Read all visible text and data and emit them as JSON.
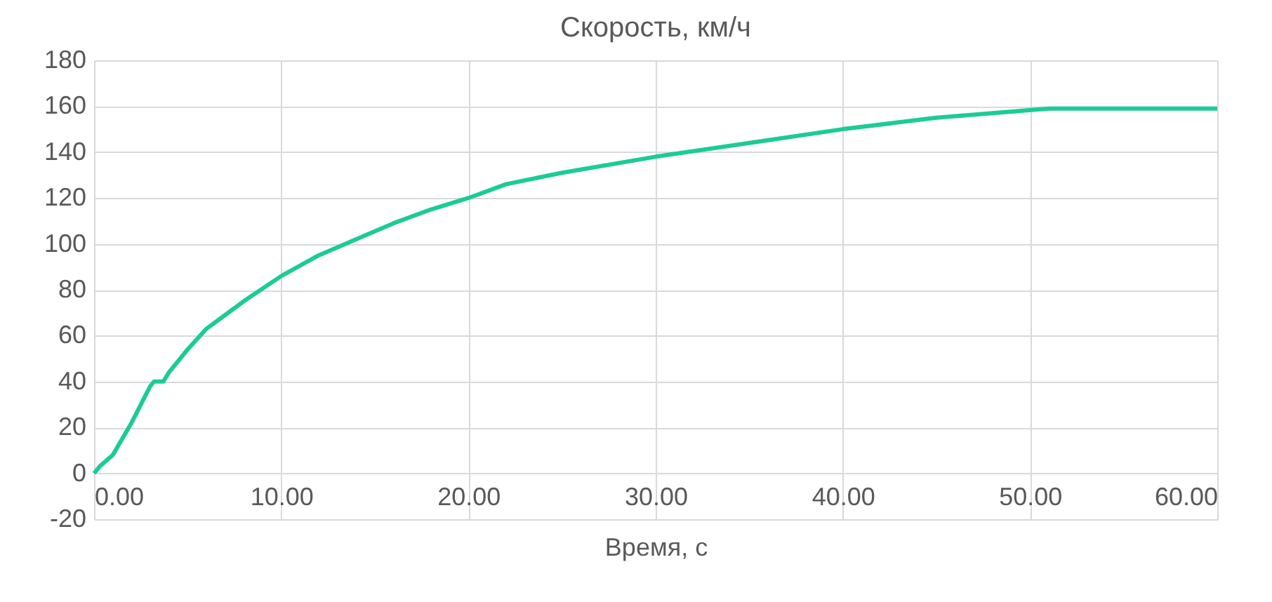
{
  "chart_data": {
    "type": "line",
    "title": "Скорость, км/ч",
    "xlabel": "Время, с",
    "x": [
      0,
      0.3,
      1,
      2,
      3,
      3.2,
      3.7,
      4,
      5,
      6,
      7,
      8,
      10,
      12,
      14,
      16,
      18,
      20,
      22,
      25,
      30,
      35,
      40,
      45,
      51,
      60
    ],
    "series": [
      {
        "color": "#1ccb96",
        "values": [
          0,
          3,
          8,
          22,
          38,
          40,
          40,
          44,
          54,
          63,
          69,
          75,
          86,
          95,
          102,
          109,
          115,
          120,
          126,
          131,
          138,
          144,
          150,
          155,
          159,
          159
        ]
      }
    ],
    "xlim": [
      0,
      60
    ],
    "xticks": [
      {
        "value": 0,
        "label": "0.00"
      },
      {
        "value": 10,
        "label": "10.00"
      },
      {
        "value": 20,
        "label": "20.00"
      },
      {
        "value": 30,
        "label": "30.00"
      },
      {
        "value": 40,
        "label": "40.00"
      },
      {
        "value": 50,
        "label": "50.00"
      },
      {
        "value": 60,
        "label": "60.00"
      }
    ],
    "ylim": [
      -20,
      180
    ],
    "yticks": [
      -20,
      0,
      20,
      40,
      60,
      80,
      100,
      120,
      140,
      160,
      180
    ],
    "grid": true,
    "legend": false,
    "marker": "none",
    "line_style": "solid"
  }
}
